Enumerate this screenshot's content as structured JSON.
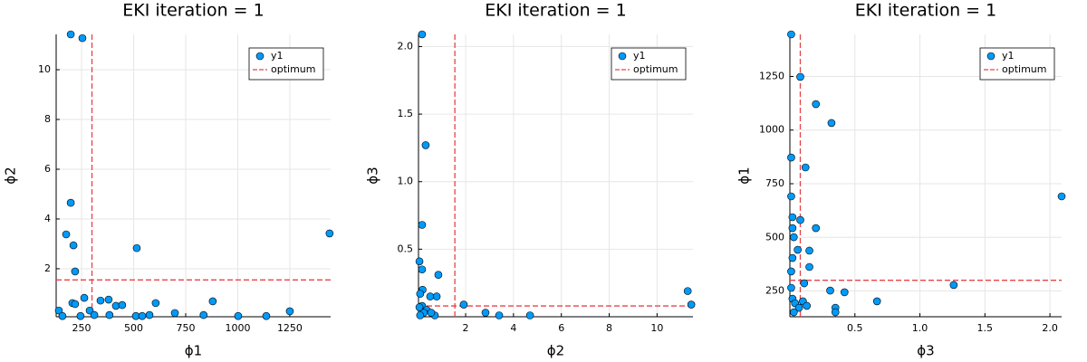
{
  "chart_data": [
    {
      "type": "scatter",
      "title": "EKI iteration = 1",
      "x_label": "ϕ1",
      "y_label": "ϕ2",
      "series": [
        {
          "name": "y1",
          "color": "#009af9",
          "x": [
            198,
            254,
            198,
            176,
            211,
            219,
            515,
            1441,
            263,
            206,
            219,
            341,
            380,
            415,
            445,
            606,
            880,
            698,
            1002,
            1250,
            836,
            1137,
            141,
            289,
            311,
            245,
            158,
            384,
            511,
            576,
            541
          ],
          "y": [
            11.42,
            11.27,
            4.65,
            3.38,
            2.94,
            1.89,
            2.83,
            3.42,
            0.83,
            0.62,
            0.58,
            0.72,
            0.76,
            0.51,
            0.54,
            0.62,
            0.69,
            0.22,
            0.1,
            0.29,
            0.14,
            0.1,
            0.32,
            0.32,
            0.14,
            0.1,
            0.1,
            0.14,
            0.1,
            0.14,
            0.1
          ]
        }
      ],
      "optimum": {
        "name": "optimum",
        "color": "#e8434a",
        "x": 300,
        "y": 1.55
      },
      "xlim": [
        128,
        1446
      ],
      "ylim": [
        0.07,
        11.42
      ],
      "xticks": [
        250,
        500,
        750,
        1000,
        1250
      ],
      "yticks": [
        2,
        4,
        6,
        8,
        10
      ],
      "grid": true,
      "legend": "top-right"
    },
    {
      "type": "scatter",
      "title": "EKI iteration = 1",
      "x_label": "ϕ2",
      "y_label": "ϕ3",
      "series": [
        {
          "name": "y1",
          "color": "#009af9",
          "x": [
            0.18,
            0.33,
            0.18,
            0.07,
            0.18,
            0.86,
            0.2,
            0.79,
            0.52,
            0.1,
            0.18,
            1.92,
            11.28,
            11.43,
            2.83,
            3.4,
            4.69,
            0.37,
            0.71,
            0.56,
            0.25,
            0.1,
            0.07
          ],
          "y": [
            2.09,
            1.27,
            0.68,
            0.41,
            0.35,
            0.31,
            0.2,
            0.15,
            0.15,
            0.17,
            0.08,
            0.09,
            0.19,
            0.09,
            0.03,
            0.01,
            0.01,
            0.05,
            0.01,
            0.03,
            0.03,
            0.01,
            0.07
          ]
        }
      ],
      "optimum": {
        "name": "optimum",
        "color": "#e8434a",
        "x": 1.55,
        "y": 0.08
      },
      "xlim": [
        0.03,
        11.5
      ],
      "ylim": [
        0,
        2.09
      ],
      "xticks": [
        2,
        4,
        6,
        8,
        10
      ],
      "yticks": [
        0.5,
        {
          "value": 1,
          "label": "1.0"
        },
        1.5,
        {
          "value": 2,
          "label": "2.0"
        }
      ],
      "grid": true,
      "legend": "top-right"
    },
    {
      "type": "scatter",
      "title": "EKI iteration = 1",
      "x_label": "ϕ3",
      "y_label": "ϕ1",
      "series": [
        {
          "name": "y1",
          "color": "#009af9",
          "x": [
            0.01,
            0.08,
            0.2,
            0.32,
            0.12,
            0.01,
            0.01,
            0.02,
            0.02,
            0.08,
            0.03,
            0.06,
            0.02,
            0.15,
            0.2,
            0.15,
            0.11,
            0.01,
            0.31,
            0.42,
            0.67,
            1.26,
            2.09,
            0.35,
            0.35,
            0.02,
            0.04,
            0.07,
            0.1,
            0.13,
            0.03,
            0.01
          ],
          "y": [
            1446,
            1248,
            1121,
            1033,
            826,
            872,
            691,
            594,
            543,
            581,
            501,
            442,
            404,
            438,
            543,
            362,
            286,
            265,
            252,
            244,
            202,
            278,
            691,
            172,
            151,
            214,
            193,
            172,
            202,
            181,
            151,
            341
          ]
        }
      ],
      "optimum": {
        "name": "optimum",
        "color": "#e8434a",
        "x": 0.08,
        "y": 300
      },
      "xlim": [
        0,
        2.09
      ],
      "ylim": [
        130,
        1446
      ],
      "xticks": [
        0.5,
        {
          "value": 1,
          "label": "1.0"
        },
        1.5,
        {
          "value": 2,
          "label": "2.0"
        }
      ],
      "yticks": [
        250,
        500,
        750,
        1000,
        1250
      ],
      "grid": true,
      "legend": "top-right"
    }
  ]
}
